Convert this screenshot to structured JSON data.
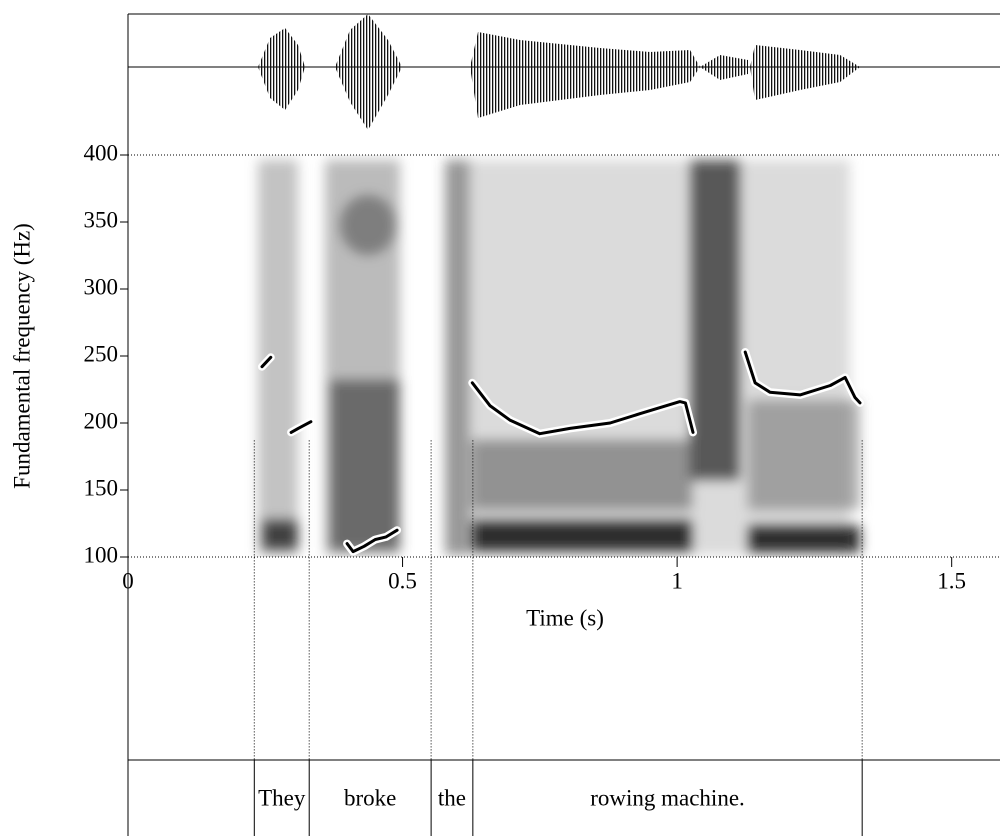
{
  "chart_data": {
    "type": "line",
    "xlabel": "Time (s)",
    "ylabel": "Fundamental frequency (Hz)",
    "xlim": [
      0,
      1.588
    ],
    "ylim": [
      100,
      400
    ],
    "xticks": [
      0,
      0.5,
      1,
      1.5
    ],
    "yticks": [
      100,
      150,
      200,
      250,
      300,
      350,
      400
    ],
    "x": [
      0.244,
      0.26,
      null,
      0.297,
      0.31,
      0.333,
      null,
      0.399,
      0.41,
      0.43,
      0.45,
      0.47,
      0.49,
      null,
      0.627,
      0.659,
      0.696,
      0.75,
      0.805,
      0.878,
      0.933,
      1.005,
      1.015,
      1.029,
      null,
      1.124,
      1.142,
      1.169,
      1.224,
      1.279,
      1.306,
      1.324,
      1.333
    ],
    "series": [
      {
        "color": "#000000",
        "values": [
          242,
          249,
          null,
          193,
          196,
          201,
          null,
          110,
          104,
          108,
          113,
          115,
          120,
          null,
          230,
          213,
          202,
          192,
          196,
          200,
          207,
          216,
          215,
          193,
          null,
          253,
          230,
          223,
          221,
          228,
          234,
          219,
          215
        ]
      }
    ],
    "boundaries": [
      0.23,
      0.33,
      0.552,
      0.628,
      1.337
    ],
    "words": [
      "They",
      "broke",
      "the",
      "rowing machine."
    ]
  }
}
